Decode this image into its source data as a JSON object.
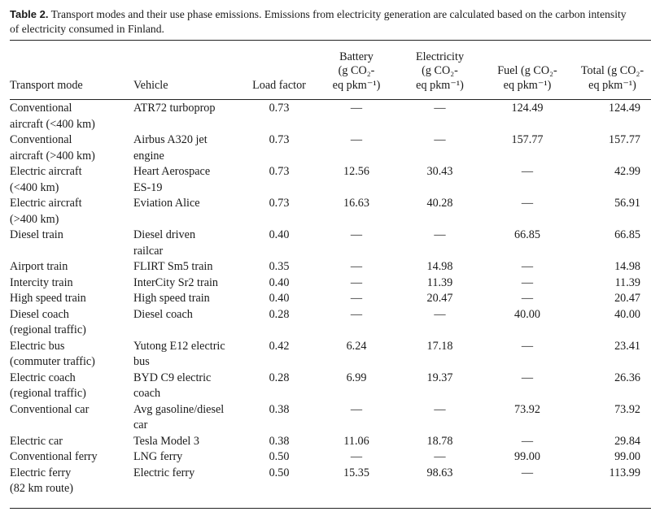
{
  "caption": {
    "label": "Table 2.",
    "text": "Transport modes and their use phase emissions. Emissions from electricity generation are calculated based on the carbon intensity of electricity consumed in Finland."
  },
  "headers": {
    "mode": "Transport mode",
    "vehicle": "Vehicle",
    "load": "Load factor",
    "battery": [
      "Battery",
      "(g CO₂-",
      "eq pkm⁻¹)"
    ],
    "electricity": [
      "Electricity",
      "(g CO₂-",
      "eq pkm⁻¹)"
    ],
    "fuel": [
      "Fuel (g CO₂-",
      "eq pkm⁻¹)"
    ],
    "total": [
      "Total (g CO₂-",
      "eq pkm⁻¹)"
    ]
  },
  "rows": [
    {
      "mode": [
        "Conventional",
        "aircraft (<400 km)"
      ],
      "vehicle": [
        "ATR72 turboprop"
      ],
      "load": "0.73",
      "battery": "—",
      "electricity": "—",
      "fuel": "124.49",
      "total": "124.49"
    },
    {
      "mode": [
        "Conventional",
        "aircraft (>400 km)"
      ],
      "vehicle": [
        "Airbus A320 jet",
        "engine"
      ],
      "load": "0.73",
      "battery": "—",
      "electricity": "—",
      "fuel": "157.77",
      "total": "157.77"
    },
    {
      "mode": [
        "Electric aircraft",
        "(<400 km)"
      ],
      "vehicle": [
        "Heart Aerospace",
        "ES-19"
      ],
      "load": "0.73",
      "battery": "12.56",
      "electricity": "30.43",
      "fuel": "—",
      "total": "42.99"
    },
    {
      "mode": [
        "Electric aircraft",
        "(>400 km)"
      ],
      "vehicle": [
        "Eviation Alice"
      ],
      "load": "0.73",
      "battery": "16.63",
      "electricity": "40.28",
      "fuel": "—",
      "total": "56.91"
    },
    {
      "mode": [
        "Diesel train"
      ],
      "vehicle": [
        "Diesel driven",
        "railcar"
      ],
      "load": "0.40",
      "battery": "—",
      "electricity": "—",
      "fuel": "66.85",
      "total": "66.85"
    },
    {
      "mode": [
        "Airport train"
      ],
      "vehicle": [
        "FLIRT Sm5 train"
      ],
      "load": "0.35",
      "battery": "—",
      "electricity": "14.98",
      "fuel": "—",
      "total": "14.98"
    },
    {
      "mode": [
        "Intercity train"
      ],
      "vehicle": [
        "InterCity Sr2 train"
      ],
      "load": "0.40",
      "battery": "—",
      "electricity": "11.39",
      "fuel": "—",
      "total": "11.39"
    },
    {
      "mode": [
        "High speed train"
      ],
      "vehicle": [
        "High speed train"
      ],
      "load": "0.40",
      "battery": "—",
      "electricity": "20.47",
      "fuel": "—",
      "total": "20.47"
    },
    {
      "mode": [
        "Diesel coach",
        "(regional traffic)"
      ],
      "vehicle": [
        "Diesel coach"
      ],
      "load": "0.28",
      "battery": "—",
      "electricity": "—",
      "fuel": "40.00",
      "total": "40.00"
    },
    {
      "mode": [
        "Electric bus",
        "(commuter traffic)"
      ],
      "vehicle": [
        "Yutong E12 electric",
        "bus"
      ],
      "load": "0.42",
      "battery": "6.24",
      "electricity": "17.18",
      "fuel": "—",
      "total": "23.41"
    },
    {
      "mode": [
        "Electric coach",
        "(regional traffic)"
      ],
      "vehicle": [
        "BYD C9 electric",
        "coach"
      ],
      "load": "0.28",
      "battery": "6.99",
      "electricity": "19.37",
      "fuel": "—",
      "total": "26.36"
    },
    {
      "mode": [
        "Conventional car"
      ],
      "vehicle": [
        "Avg gasoline/diesel",
        "car"
      ],
      "load": "0.38",
      "battery": "—",
      "electricity": "—",
      "fuel": "73.92",
      "total": "73.92"
    },
    {
      "mode": [
        "Electric car"
      ],
      "vehicle": [
        "Tesla Model 3"
      ],
      "load": "0.38",
      "battery": "11.06",
      "electricity": "18.78",
      "fuel": "—",
      "total": "29.84"
    },
    {
      "mode": [
        "Conventional ferry"
      ],
      "vehicle": [
        "LNG ferry"
      ],
      "load": "0.50",
      "battery": "—",
      "electricity": "—",
      "fuel": "99.00",
      "total": "99.00"
    },
    {
      "mode": [
        "Electric ferry",
        "(82 km route)"
      ],
      "vehicle": [
        "Electric ferry"
      ],
      "load": "0.50",
      "battery": "15.35",
      "electricity": "98.63",
      "fuel": "—",
      "total": "113.99"
    }
  ]
}
